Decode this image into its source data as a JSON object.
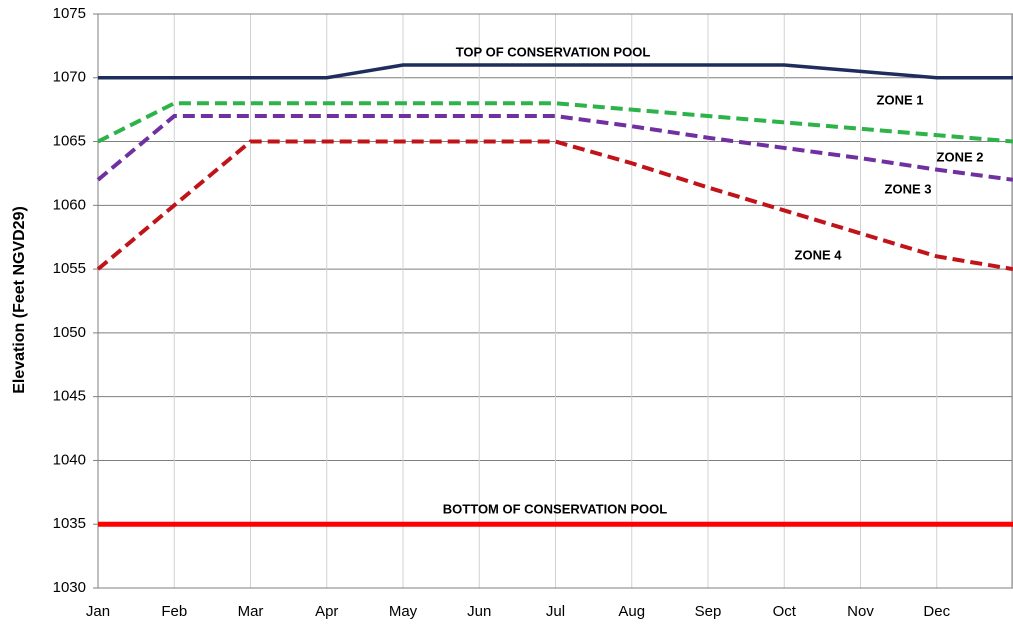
{
  "chart_data": {
    "type": "line",
    "y_label": "Elevation (Feet NGVD29)",
    "categories": [
      "Jan",
      "Feb",
      "Mar",
      "Apr",
      "May",
      "Jun",
      "Jul",
      "Aug",
      "Sep",
      "Oct",
      "Nov",
      "Dec",
      null
    ],
    "ylim": [
      1030,
      1075
    ],
    "yticks": [
      1030,
      1035,
      1040,
      1045,
      1050,
      1055,
      1060,
      1065,
      1070,
      1075
    ],
    "grid": true,
    "series": [
      {
        "name": "TOP OF CONSERVATION POOL",
        "color": "#1f2d5c",
        "dashed": false,
        "values": [
          1070,
          1070,
          1070,
          1070,
          1071,
          1071,
          1071,
          1071,
          1071,
          1071,
          1070.5,
          1070,
          1070
        ]
      },
      {
        "color": "#2db34a",
        "dashed": true,
        "values": [
          1065,
          1068,
          1068,
          1068,
          1068,
          1068,
          1068,
          1067.5,
          1067,
          1066.5,
          1066,
          1065.5,
          1065
        ]
      },
      {
        "color": "#7030a0",
        "dashed": true,
        "values": [
          1062,
          1067,
          1067,
          1067,
          1067,
          1067,
          1067,
          1066.2,
          1065.3,
          1064.5,
          1063.7,
          1062.8,
          1062
        ]
      },
      {
        "color": "#c0141a",
        "dashed": true,
        "values": [
          1055,
          1060,
          1065,
          1065,
          1065,
          1065,
          1065,
          1063.3,
          1061.4,
          1059.6,
          1057.8,
          1056,
          1055
        ]
      },
      {
        "name": "BOTTOM OF CONSERVATION POOL",
        "color": "#ff0000",
        "dashed": false,
        "values": [
          1035,
          1035,
          1035,
          1035,
          1035,
          1035,
          1035,
          1035,
          1035,
          1035,
          1035,
          1035,
          1035
        ]
      }
    ],
    "annotations": [
      "ZONE 1",
      "ZONE 2",
      "ZONE 3",
      "ZONE 4"
    ]
  }
}
